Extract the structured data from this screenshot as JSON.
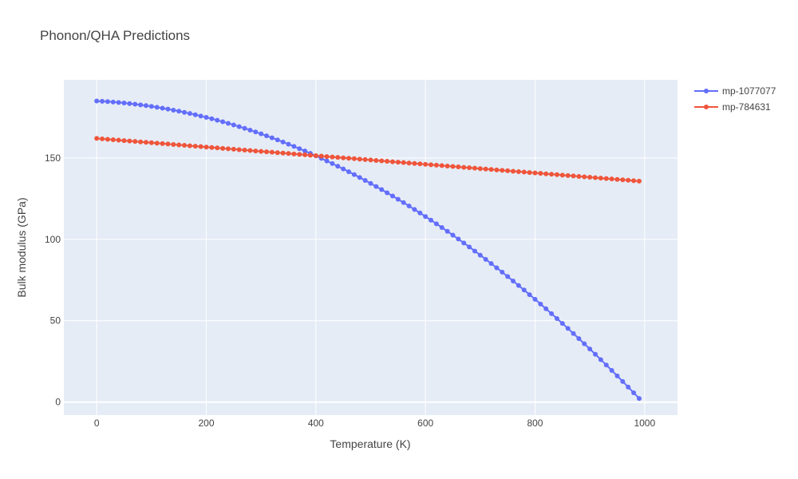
{
  "chart_data": {
    "type": "line",
    "title": "Phonon/QHA Predictions",
    "xlabel": "Temperature (K)",
    "ylabel": "Bulk modulus (GPa)",
    "xlim": [
      -60,
      1060
    ],
    "ylim": [
      -8,
      198
    ],
    "xticks": [
      0,
      200,
      400,
      600,
      800,
      1000
    ],
    "yticks": [
      0,
      50,
      100,
      150
    ],
    "grid": true,
    "legend_position": "top-right",
    "x": {
      "start": 0,
      "step": 10,
      "count": 100
    },
    "series": [
      {
        "name": "mp-1077077",
        "color": "#636efa",
        "mode": "lines+markers",
        "y0": 185,
        "curvature": 0.00017,
        "slope_end": 0.35
      },
      {
        "name": "mp-784631",
        "color": "#ef553b",
        "mode": "lines+markers",
        "y0": 162,
        "curvature": 0.0,
        "slope_end": 0.0265
      }
    ]
  }
}
